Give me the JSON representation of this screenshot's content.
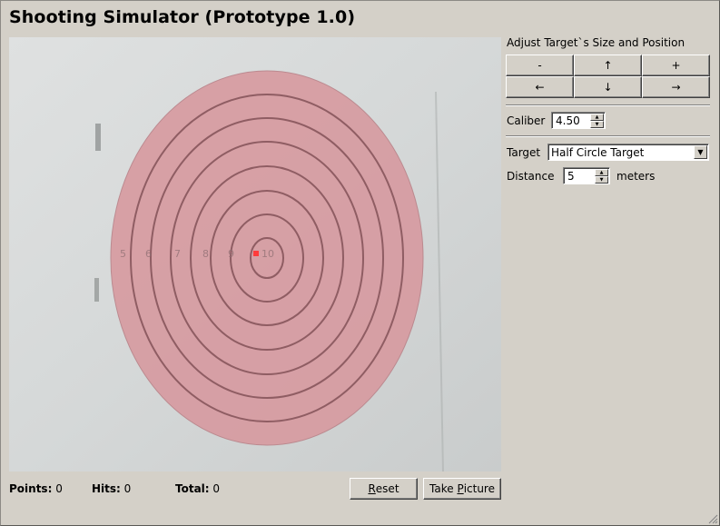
{
  "app": {
    "title": "Shooting Simulator (Prototype 1.0)"
  },
  "target_view": {
    "ring_labels": [
      "5",
      "6",
      "7",
      "8",
      "9",
      "10"
    ],
    "colors": {
      "target_fill": "#d79aa0",
      "ring_stroke": "#8f5d63",
      "hit_marker": "#ff3b3b"
    }
  },
  "status": {
    "points_label": "Points:",
    "points_value": "0",
    "hits_label": "Hits:",
    "hits_value": "0",
    "total_label": "Total:",
    "total_value": "0"
  },
  "actions": {
    "reset_prefix": "",
    "reset_ul": "R",
    "reset_suffix": "eset",
    "take_prefix": "Take ",
    "take_ul": "P",
    "take_suffix": "icture"
  },
  "adjust": {
    "heading": "Adjust Target`s Size and Position",
    "shrink": "-",
    "up": "↑",
    "grow": "+",
    "left": "←",
    "down": "↓",
    "right": "→"
  },
  "caliber": {
    "label": "Caliber",
    "value": "4.50"
  },
  "target": {
    "label": "Target",
    "selected": "Half Circle Target"
  },
  "distance": {
    "label": "Distance",
    "value": "5",
    "unit": "meters"
  }
}
